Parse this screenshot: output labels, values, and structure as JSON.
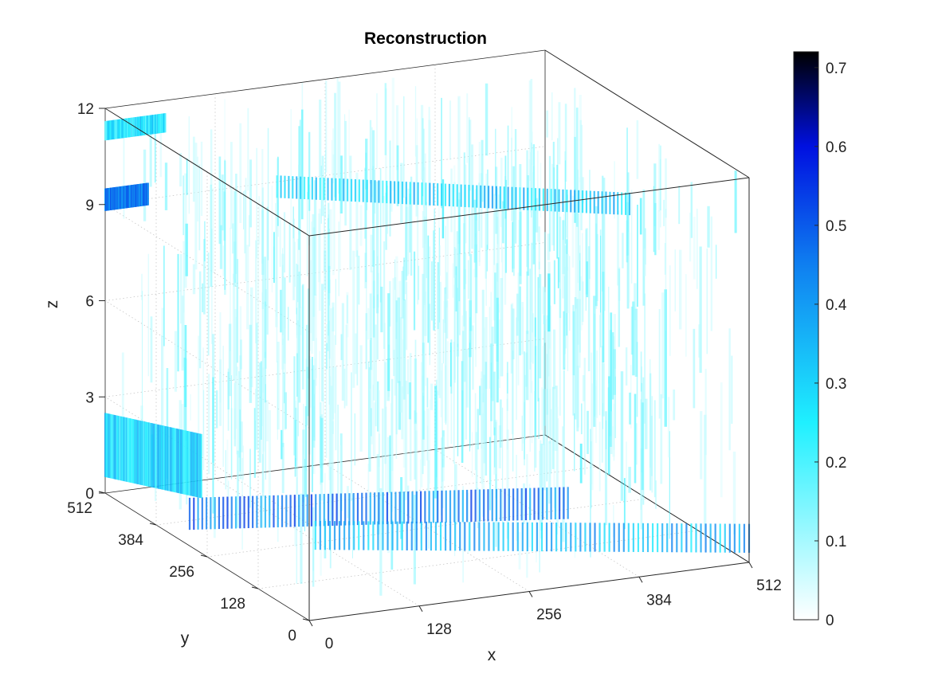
{
  "chart_data": {
    "type": "volume-3d",
    "title": "Reconstruction",
    "xlabel": "x",
    "ylabel": "y",
    "zlabel": "z",
    "xlim": [
      0,
      512
    ],
    "ylim": [
      0,
      512
    ],
    "zlim": [
      0,
      12
    ],
    "xticks": [
      "0",
      "128",
      "256",
      "384",
      "512"
    ],
    "yticks": [
      "0",
      "128",
      "256",
      "384",
      "512"
    ],
    "zticks": [
      "0",
      "3",
      "6",
      "9",
      "12"
    ],
    "grid": true,
    "box": true,
    "colormap": {
      "name": "white-cyan-blue-black",
      "stops": [
        {
          "value": 0.0,
          "color": "#ffffff"
        },
        {
          "value": 0.25,
          "color": "#1ff0ff"
        },
        {
          "value": 0.45,
          "color": "#0f7ff0"
        },
        {
          "value": 0.6,
          "color": "#0010e0"
        },
        {
          "value": 0.72,
          "color": "#000000"
        }
      ]
    },
    "colorbar": {
      "location": "right",
      "range": [
        0,
        0.72
      ],
      "ticks": [
        "0",
        "0.1",
        "0.2",
        "0.3",
        "0.4",
        "0.5",
        "0.6",
        "0.7"
      ]
    },
    "features": [
      {
        "name": "top-left band",
        "x": [
          0,
          70
        ],
        "y": [
          512,
          512
        ],
        "z": [
          11,
          11.6
        ],
        "value": 0.25
      },
      {
        "name": "upper strong band",
        "x": [
          0,
          50
        ],
        "y": [
          512,
          512
        ],
        "z": [
          8.8,
          9.5
        ],
        "value": 0.45
      },
      {
        "name": "upper diagonal band",
        "x": [
          200,
          512
        ],
        "y": [
          512,
          300
        ],
        "z": [
          8.5,
          9.2
        ],
        "value": 0.3
      },
      {
        "name": "lower strong band",
        "x": [
          0,
          380
        ],
        "y": [
          300,
          170
        ],
        "z": [
          0.5,
          1.5
        ],
        "value": 0.45
      },
      {
        "name": "lower band 2",
        "x": [
          100,
          512
        ],
        "y": [
          200,
          0
        ],
        "z": [
          0.3,
          1.2
        ],
        "value": 0.35
      },
      {
        "name": "left low band",
        "x": [
          0,
          60
        ],
        "y": [
          512,
          400
        ],
        "z": [
          0.5,
          2.5
        ],
        "value": 0.28
      }
    ]
  }
}
